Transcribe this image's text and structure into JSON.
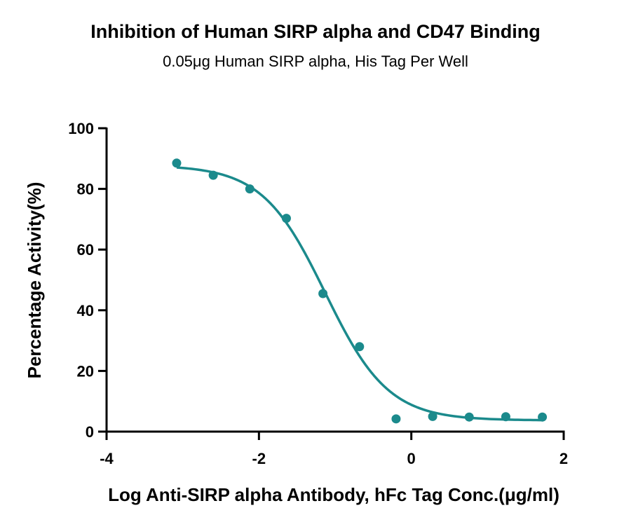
{
  "chart_data": {
    "type": "scatter",
    "title": "Inhibition of Human SIRP alpha and CD47 Binding",
    "subtitle": "0.05μg Human SIRP alpha, His Tag Per Well",
    "xlabel": "Log Anti-SIRP alpha Antibody, hFc Tag Conc.(μg/ml)",
    "ylabel": "Percentage Activity(%)",
    "xlim": [
      -4,
      2
    ],
    "ylim": [
      0,
      100
    ],
    "x_ticks": [
      -4,
      -2,
      0,
      2
    ],
    "x_tick_labels": [
      "-4",
      "-2",
      "0",
      "2"
    ],
    "y_ticks": [
      0,
      20,
      40,
      60,
      80,
      100
    ],
    "y_tick_labels": [
      "0",
      "20",
      "40",
      "60",
      "80",
      "100"
    ],
    "grid": false,
    "color": "#1b8a8c",
    "series": [
      {
        "points": [
          {
            "x": -3.08,
            "y": 88.5
          },
          {
            "x": -2.6,
            "y": 84.5
          },
          {
            "x": -2.12,
            "y": 80.0
          },
          {
            "x": -1.64,
            "y": 70.3
          },
          {
            "x": -1.16,
            "y": 45.5
          },
          {
            "x": -0.68,
            "y": 28.0
          },
          {
            "x": -0.2,
            "y": 4.2
          },
          {
            "x": 0.28,
            "y": 5.0
          },
          {
            "x": 0.76,
            "y": 4.8
          },
          {
            "x": 1.24,
            "y": 4.9
          },
          {
            "x": 1.72,
            "y": 4.8
          }
        ],
        "fit": {
          "model": "four-parameter logistic",
          "top": 87.8,
          "bottom": 3.7,
          "log_ic50": -1.13,
          "hill_slope": -1.05,
          "x_range": [
            -3.08,
            1.72
          ]
        }
      }
    ]
  }
}
